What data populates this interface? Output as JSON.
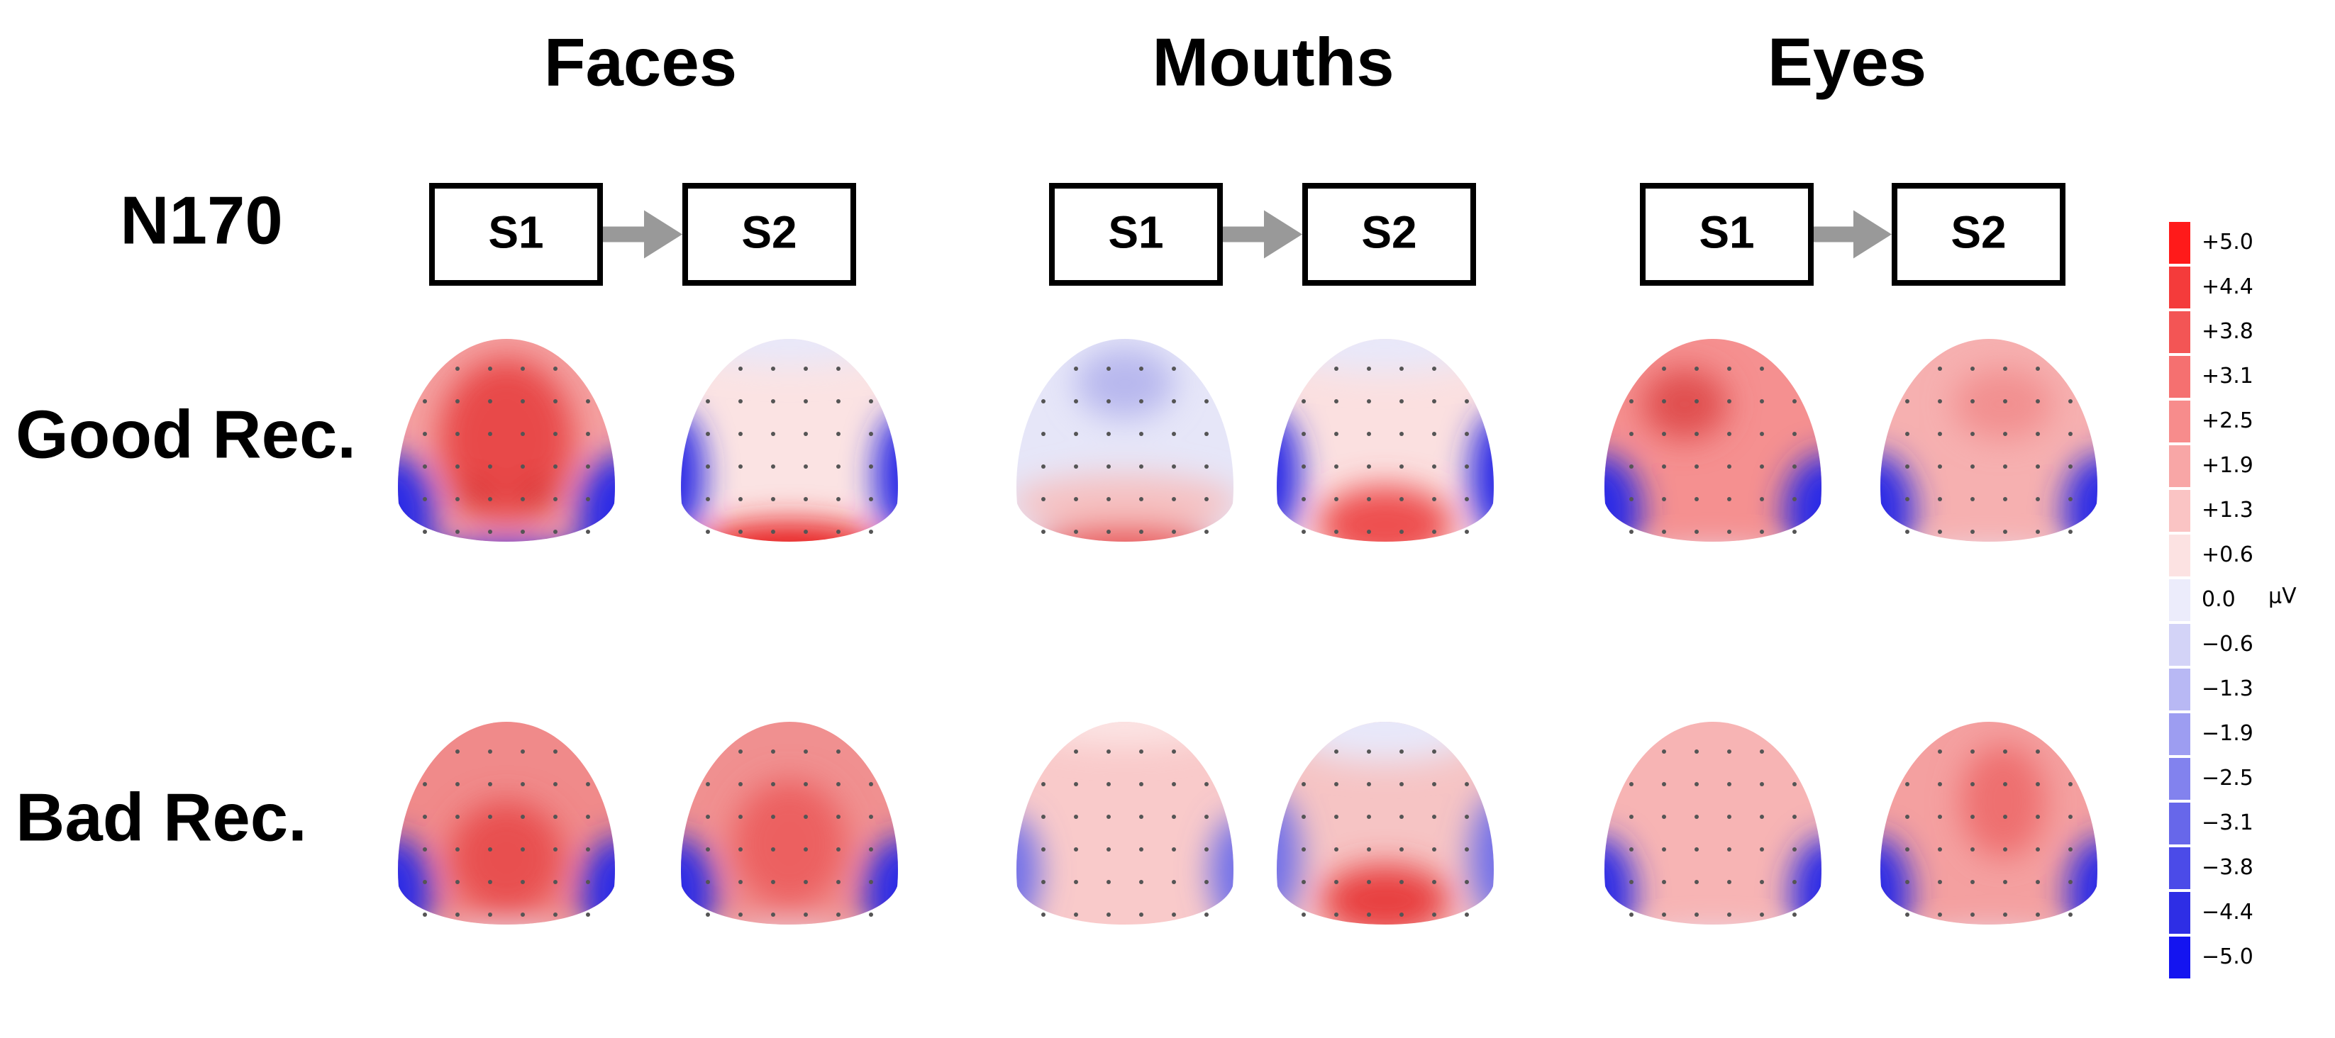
{
  "component": "N170",
  "columns": [
    {
      "title": "Faces",
      "s1": "S1",
      "s2": "S2"
    },
    {
      "title": "Mouths",
      "s1": "S1",
      "s2": "S2"
    },
    {
      "title": "Eyes",
      "s1": "S1",
      "s2": "S2"
    }
  ],
  "rows": [
    "Good Rec.",
    "Bad Rec."
  ],
  "colorbar": {
    "labels": [
      "+5.0",
      "+4.4",
      "+3.8",
      "+3.1",
      "+2.5",
      "+1.9",
      "+1.3",
      "+0.6",
      "0.0",
      "−0.6",
      "−1.3",
      "−1.9",
      "−2.5",
      "−3.1",
      "−3.8",
      "−4.4",
      "−5.0"
    ],
    "colors": [
      "#ff1a1a",
      "#f43b3b",
      "#f35555",
      "#f57070",
      "#f78c8c",
      "#f8a6a6",
      "#fac4c4",
      "#fce2e2",
      "#ececfb",
      "#d3d3f7",
      "#b8b8f4",
      "#9d9df1",
      "#8282ee",
      "#6767ea",
      "#4b4be8",
      "#2e2ee5",
      "#1414f0"
    ],
    "unit": "µV"
  }
}
